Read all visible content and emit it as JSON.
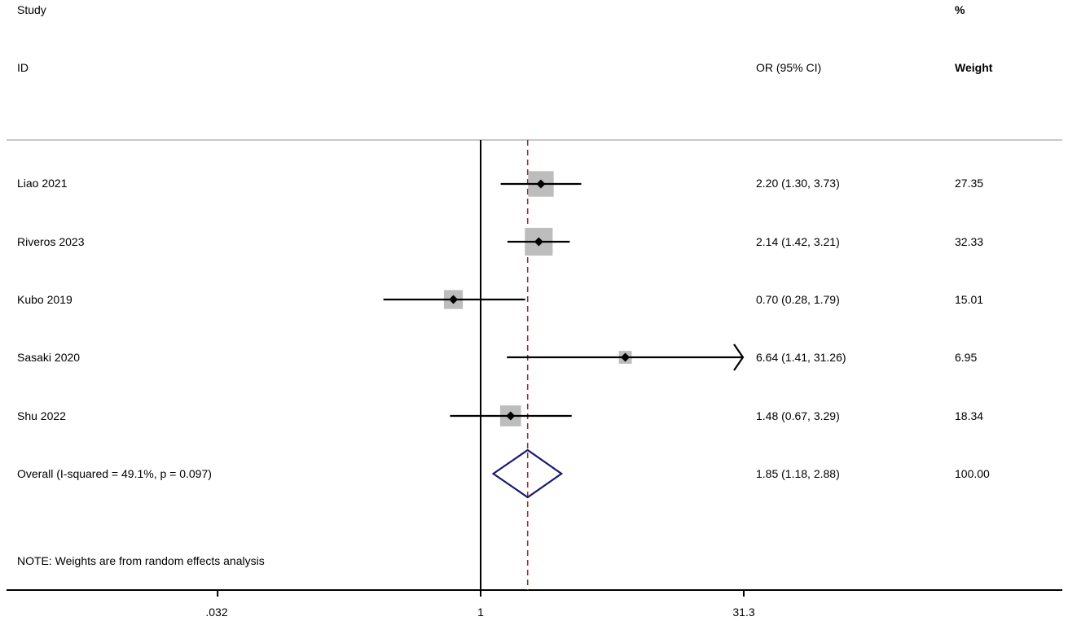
{
  "header": {
    "study_line1": "Study",
    "study_line2": "ID",
    "or_label": "OR (95% CI)",
    "weight_line1": "%",
    "weight_line2": "Weight"
  },
  "note": "NOTE: Weights are from random effects analysis",
  "chart_data": {
    "type": "forest",
    "effect_measure": "OR",
    "x_scale": "log",
    "xlim": [
      0.032,
      31.3
    ],
    "x_ticks": [
      0.032,
      1,
      31.3
    ],
    "x_tick_labels": [
      ".032",
      "1",
      "31.3"
    ],
    "null_line": 1,
    "studies": [
      {
        "label": "Liao 2021",
        "or": 2.2,
        "lo": 1.3,
        "hi": 3.73,
        "text": "2.20 (1.30, 3.73)",
        "weight": 27.35,
        "weight_text": "27.35"
      },
      {
        "label": "Riveros 2023",
        "or": 2.14,
        "lo": 1.42,
        "hi": 3.21,
        "text": "2.14 (1.42, 3.21)",
        "weight": 32.33,
        "weight_text": "32.33"
      },
      {
        "label": "Kubo 2019",
        "or": 0.7,
        "lo": 0.28,
        "hi": 1.79,
        "text": "0.70 (0.28, 1.79)",
        "weight": 15.01,
        "weight_text": "15.01"
      },
      {
        "label": "Sasaki 2020",
        "or": 6.64,
        "lo": 1.41,
        "hi": 31.26,
        "text": "6.64 (1.41, 31.26)",
        "weight": 6.95,
        "weight_text": "6.95"
      },
      {
        "label": "Shu 2022",
        "or": 1.48,
        "lo": 0.67,
        "hi": 3.29,
        "text": "1.48 (0.67, 3.29)",
        "weight": 18.34,
        "weight_text": "18.34"
      }
    ],
    "overall": {
      "label": "Overall  (I-squared = 49.1%, p = 0.097)",
      "or": 1.85,
      "lo": 1.18,
      "hi": 2.88,
      "text": "1.85 (1.18, 2.88)",
      "weight_text": "100.00"
    },
    "colors": {
      "box": "#bdbdbd",
      "diamond": "#1a1a6e",
      "dashed_line": "#a52a2a",
      "lines": "#000000"
    }
  }
}
